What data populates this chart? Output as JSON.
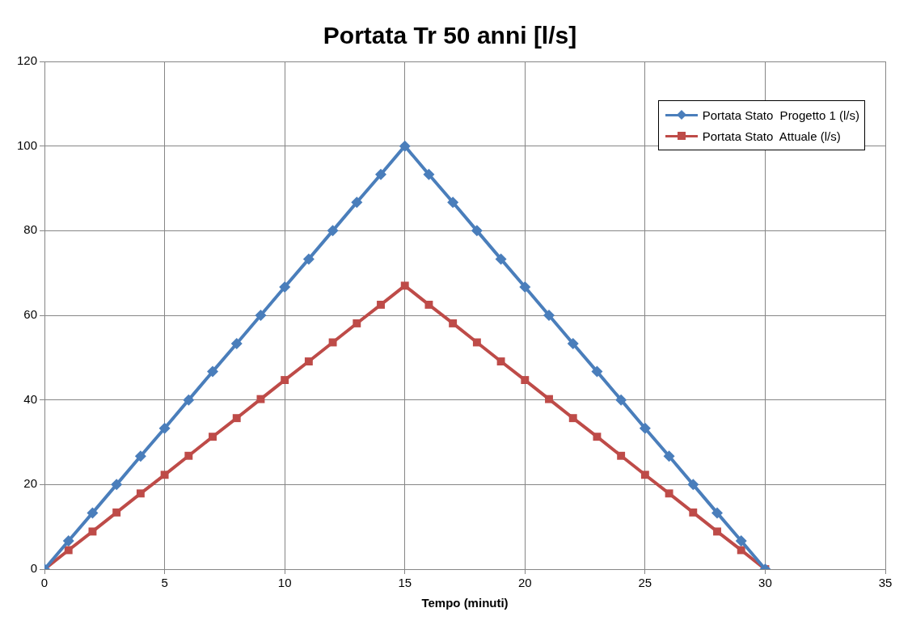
{
  "chart_data": {
    "type": "line",
    "title": "Portata Tr 50 anni [l/s]",
    "xlabel": "Tempo (minuti)",
    "x": [
      0,
      1,
      2,
      3,
      4,
      5,
      6,
      7,
      8,
      9,
      10,
      11,
      12,
      13,
      14,
      15,
      16,
      17,
      18,
      19,
      20,
      21,
      22,
      23,
      24,
      25,
      26,
      27,
      28,
      29,
      30
    ],
    "series": [
      {
        "name": "Portata Stato  Progetto 1 (l/s)",
        "color": "#4a7ebb",
        "marker": "diamond",
        "values": [
          0,
          6.7,
          13.3,
          20,
          26.7,
          33.3,
          40,
          46.7,
          53.3,
          60,
          66.7,
          73.3,
          80,
          86.7,
          93.3,
          100,
          93.3,
          86.7,
          80,
          73.3,
          66.7,
          60,
          53.3,
          46.7,
          40,
          33.3,
          26.7,
          20,
          13.3,
          6.7,
          0
        ]
      },
      {
        "name": "Portata Stato  Attuale (l/s)",
        "color": "#be4b48",
        "marker": "square",
        "values": [
          0,
          4.5,
          8.9,
          13.4,
          17.9,
          22.3,
          26.8,
          31.3,
          35.7,
          40.2,
          44.7,
          49.1,
          53.6,
          58.1,
          62.5,
          67,
          62.5,
          58.1,
          53.6,
          49.1,
          44.7,
          40.2,
          35.7,
          31.3,
          26.8,
          22.3,
          17.9,
          13.4,
          8.9,
          4.5,
          0
        ]
      }
    ],
    "xlim": [
      0,
      35
    ],
    "xticks": [
      0,
      5,
      10,
      15,
      20,
      25,
      30,
      35
    ],
    "ylim": [
      0,
      120
    ],
    "yticks": [
      0,
      20,
      40,
      60,
      80,
      100,
      120
    ],
    "grid": true,
    "legend": "top right",
    "line_style": "solid"
  }
}
